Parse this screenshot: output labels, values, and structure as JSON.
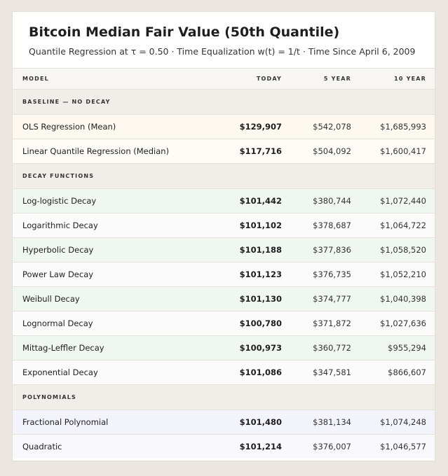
{
  "header": {
    "title": "Bitcoin Median Fair Value (50th Quantile)",
    "subtitle": "Quantile Regression at τ = 0.50 · Time Equalization w(t) = 1/t · Time Since April 6, 2009"
  },
  "table": {
    "columns": [
      "MODEL",
      "TODAY",
      "5 YEAR",
      "10 YEAR"
    ],
    "sections": [
      {
        "label": "BASELINE — NO DECAY",
        "rows": [
          [
            "OLS Regression (Mean)",
            "$129,907",
            "$542,078",
            "$1,685,993"
          ],
          [
            "Linear Quantile Regression (Median)",
            "$117,716",
            "$504,092",
            "$1,600,417"
          ]
        ]
      },
      {
        "label": "DECAY FUNCTIONS",
        "rows": [
          [
            "Log-logistic Decay",
            "$101,442",
            "$380,744",
            "$1,072,440"
          ],
          [
            "Logarithmic Decay",
            "$101,102",
            "$378,687",
            "$1,064,722"
          ],
          [
            "Hyperbolic Decay",
            "$101,188",
            "$377,836",
            "$1,058,520"
          ],
          [
            "Power Law Decay",
            "$101,123",
            "$376,735",
            "$1,052,210"
          ],
          [
            "Weibull Decay",
            "$101,130",
            "$374,777",
            "$1,040,398"
          ],
          [
            "Lognormal Decay",
            "$100,780",
            "$371,872",
            "$1,027,636"
          ],
          [
            "Mittag-Leffler Decay",
            "$100,973",
            "$360,772",
            "$955,294"
          ],
          [
            "Exponential Decay",
            "$101,086",
            "$347,581",
            "$866,607"
          ]
        ]
      },
      {
        "label": "POLYNOMIALS",
        "rows": [
          [
            "Fractional Polynomial",
            "$101,480",
            "$381,134",
            "$1,074,248"
          ],
          [
            "Quadratic",
            "$101,214",
            "$376,007",
            "$1,046,577"
          ]
        ]
      }
    ]
  }
}
